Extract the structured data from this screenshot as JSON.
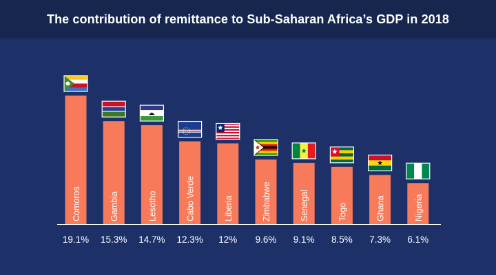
{
  "chart_data": {
    "type": "bar",
    "title": "The contribution of remittance to Sub-Saharan Africa’s GDP in 2018",
    "categories": [
      "Comoros",
      "Gambia",
      "Lesotho",
      "Cabo Verde",
      "Liberia",
      "Zimbabwe",
      "Senegal",
      "Togo",
      "Ghana",
      "Nigeria"
    ],
    "values": [
      19.1,
      15.3,
      14.7,
      12.3,
      12,
      9.6,
      9.1,
      8.5,
      7.3,
      6.1
    ],
    "value_labels": [
      "19.1%",
      "15.3%",
      "14.7%",
      "12.3%",
      "12%",
      "9.6%",
      "9.1%",
      "8.5%",
      "7.3%",
      "6.1%"
    ],
    "flags": [
      "comoros-flag-icon",
      "gambia-flag-icon",
      "lesotho-flag-icon",
      "cabo-verde-flag-icon",
      "liberia-flag-icon",
      "zimbabwe-flag-icon",
      "senegal-flag-icon",
      "togo-flag-icon",
      "ghana-flag-icon",
      "nigeria-flag-icon"
    ],
    "xlabel": "",
    "ylabel": "",
    "ylim": [
      0,
      19.1
    ],
    "grid": false,
    "legend": "none",
    "colors": {
      "bar": "#f77b5a",
      "background": "#1d3068",
      "header": "#16264f",
      "text": "#ffffff",
      "axis": "#ffffff"
    }
  }
}
